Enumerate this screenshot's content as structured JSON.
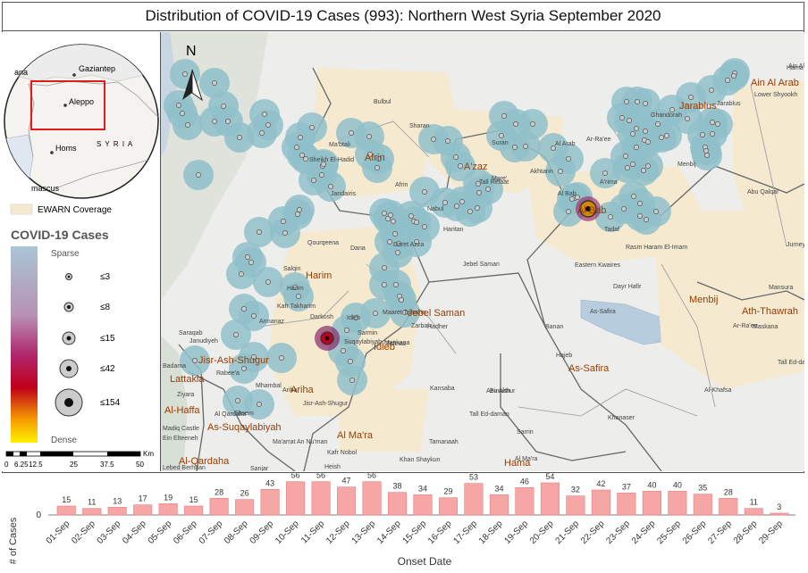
{
  "title": "Distribution of COVID-19 Cases (993): Northern West Syria September 2020",
  "inset_map": {
    "places": [
      "Gaziantep",
      "Aleppo",
      "Homs",
      "S Y R I A",
      "ana",
      "mascus"
    ]
  },
  "ewarn_legend": {
    "label": "EWARN Coverage",
    "color": "#f5ead0"
  },
  "covid_legend": {
    "title": "COVID-19 Cases",
    "top_label": "Sparse",
    "bottom_label": "Dense",
    "classes": [
      "≤3",
      "≤8",
      "≤15",
      "≤42",
      "≤154"
    ]
  },
  "scale_bar": {
    "ticks": [
      "0",
      "6.25",
      "12.5",
      "25",
      "37.5",
      "50"
    ],
    "unit": "Km"
  },
  "north_arrow": "N",
  "map_labels": {
    "districts": [
      "Afrin",
      "A'zaz",
      "Jarablus",
      "Ain Al Arab",
      "Al Bab",
      "Harim",
      "Idleb",
      "Jisr-Ash-Shugur",
      "Lattakia",
      "Ariha",
      "Al-Haffa",
      "As-Suqaylabiyah",
      "Al Ma'ra",
      "Al-Qardaha",
      "Hama",
      "Jebel Saman",
      "As-Safira",
      "Menbij",
      "Ath-Thawrah"
    ],
    "towns": [
      "Bulbul",
      "Sharan",
      "Ma'btali",
      "Sheikh El-Hadid",
      "Jandairis",
      "Afrin",
      "Nabul",
      "Haritan",
      "Suran",
      "Mare'",
      "Tall Refaat",
      "Akhtarin",
      "Ar-Ra'ee",
      "Ghandorah",
      "Jarablus",
      "Lower Shyookh",
      "Al Bab",
      "A'rima",
      "Tadaf",
      "Menbij",
      "Abu Qalqal",
      "Rasm Haram El-Imam",
      "Eastern Kwaires",
      "Dayr Hafir",
      "As-Safira",
      "Banan",
      "Hajeb",
      "Maskana",
      "Al-Khafsa",
      "Khanaser",
      "Daret Azza",
      "Jebel Saman",
      "Zarbah",
      "Hadher",
      "Qourqeena",
      "Dana",
      "Salqin",
      "Harim",
      "Kafr Takharim",
      "Armanaz",
      "Darkosh",
      "Maaret Tamsrin",
      "Teftnaz",
      "Saraqab",
      "Janudiyeh",
      "Badama",
      "Rabee'a",
      "Jisr-Ash-Shugur",
      "Ariha",
      "Mhambal",
      "Ehsem",
      "Ziyara",
      "Kansaba",
      "Abu Althur",
      "Tall Ed-daman",
      "Ma'arrat An Nu'man",
      "Kafr Nobol",
      "Heish",
      "Khan Shaykun",
      "Tamanaah",
      "Sanjar",
      "Madiq Castle",
      "Ein Elteeneh",
      "Lebed Berhuan",
      "Al Qardaha",
      "Suqaylabiyah",
      "Sarmin",
      "Idleb",
      "Binnish",
      "Tall Ed-daman",
      "Mansura",
      "Jurneyyeh",
      "Sarrin",
      "Al Ma'ra",
      "Hama",
      "Ain Al Arab",
      "Al Arab",
      "Ar-Ra'ee",
      "Maskana",
      "Teftnaz"
    ]
  },
  "chart_data": {
    "type": "bar",
    "xlabel": "Onset Date",
    "ylabel": "# of Cases",
    "yticks": [
      "0"
    ],
    "bar_color": "#f7a6a6",
    "categories": [
      "01-Sep",
      "02-Sep",
      "03-Sep",
      "04-Sep",
      "05-Sep",
      "06-Sep",
      "07-Sep",
      "08-Sep",
      "09-Sep",
      "10-Sep",
      "11-Sep",
      "12-Sep",
      "13-Sep",
      "14-Sep",
      "15-Sep",
      "16-Sep",
      "17-Sep",
      "18-Sep",
      "19-Sep",
      "20-Sep",
      "21-Sep",
      "22-Sep",
      "23-Sep",
      "24-Sep",
      "25-Sep",
      "26-Sep",
      "27-Sep",
      "28-Sep",
      "29-Sep"
    ],
    "values": [
      15,
      11,
      13,
      17,
      19,
      15,
      28,
      26,
      43,
      56,
      56,
      47,
      56,
      38,
      34,
      29,
      53,
      34,
      46,
      54,
      32,
      42,
      37,
      40,
      40,
      35,
      28,
      11,
      3
    ],
    "ylim": [
      0,
      60
    ]
  }
}
